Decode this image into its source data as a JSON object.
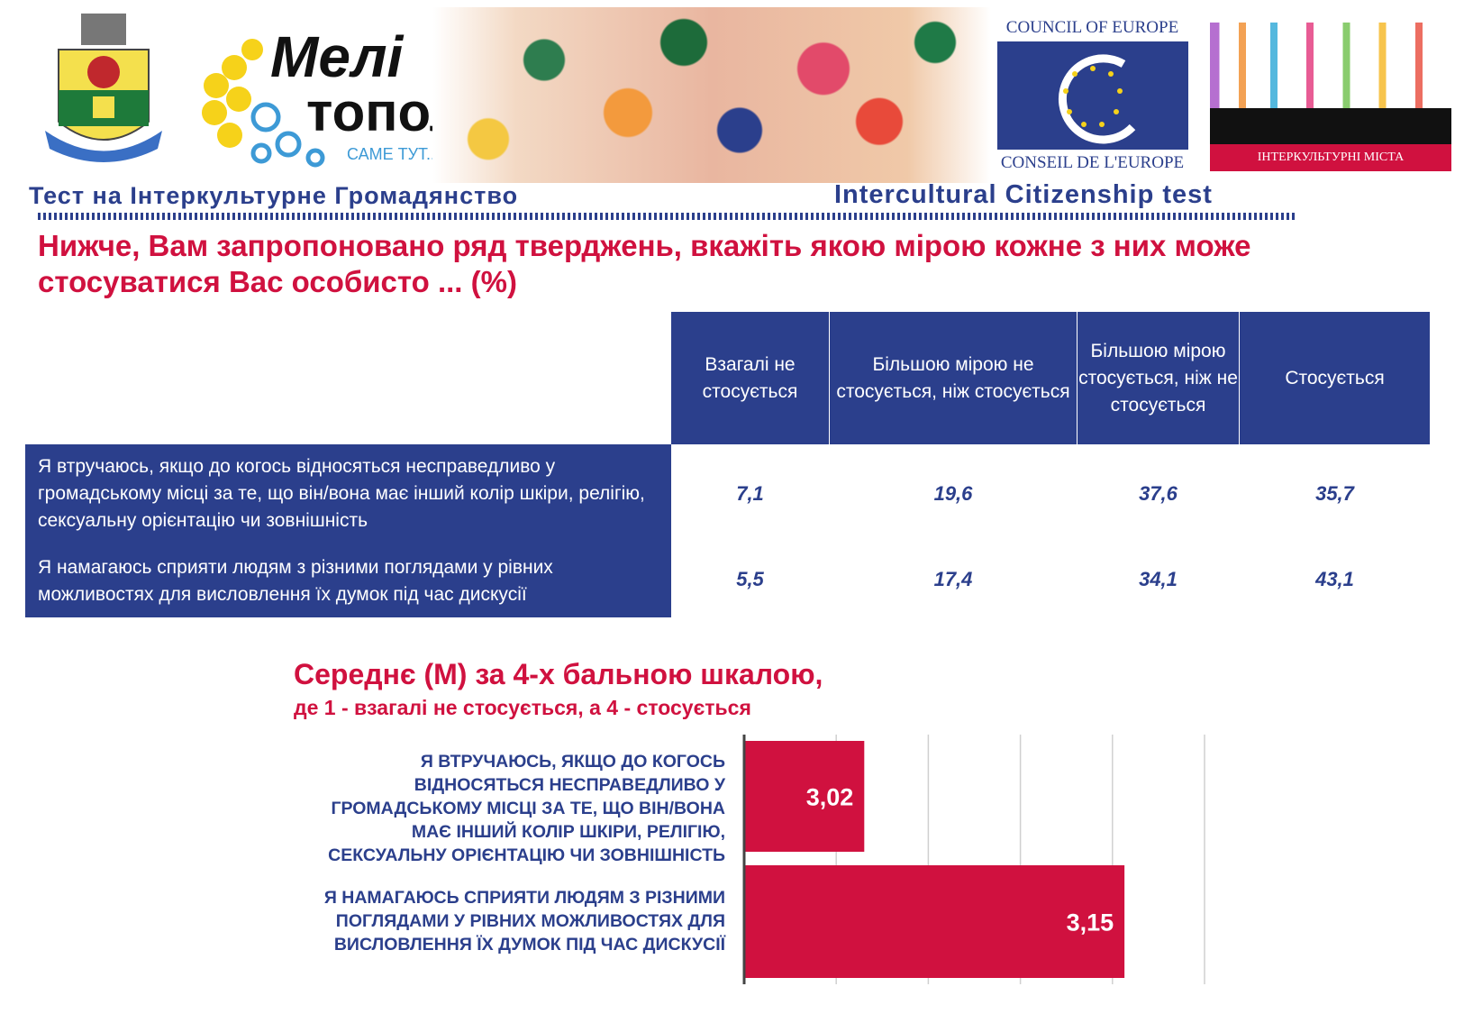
{
  "header": {
    "crest_text": "МЕЛІТОПОЛЬ",
    "melitopol_logo": {
      "line1": "Мелі",
      "line2": "тополь",
      "tagline": "САМЕ ТУТ..."
    },
    "coe_logo": {
      "top": "COUNCIL OF EUROPE",
      "bottom": "CONSEIL DE L'EUROPE"
    },
    "intercultural_cities_logo": "ІНТЕРКУЛЬТУРНІ МІСТА",
    "title_ua": "Тест на Інтеркультурне Громадянство",
    "title_en": "Intercultural Citizenship test"
  },
  "heading": "Нижче, Вам запропоновано ряд тверджень, вкажіть якою мірою кожне з них може стосуватися Вас особисто ... (%)",
  "table": {
    "columns": [
      "Взагалі не стосується",
      "Більшою мірою не стосується, ніж стосується",
      "Більшою мірою стосується, ніж не стосується",
      "Стосується"
    ],
    "rows": [
      {
        "label": "Я втручаюсь, якщо до когось відносяться несправедливо у громадському місці за те, що він/вона має інший колір шкіри, релігію, сексуальну орієнтацію чи зовнішність",
        "values": [
          "7,1",
          "19,6",
          "37,6",
          "35,7"
        ]
      },
      {
        "label": "Я намагаюсь сприяти людям з різними поглядами у рівних можливостях для висловлення їх думок під час дискусії",
        "values": [
          "5,5",
          "17,4",
          "34,1",
          "43,1"
        ]
      }
    ]
  },
  "chart_title": "Середнє (М) за 4-х бальною шкалою,",
  "chart_subtitle": "де 1 - взагалі не стосується, а 4 - стосується",
  "chart_data": {
    "type": "bar",
    "orientation": "horizontal",
    "categories": [
      "Я ВТРУЧАЮСЬ, ЯКЩО ДО КОГОСЬ ВІДНОСЯТЬСЯ НЕСПРАВЕДЛИВО У ГРОМАДСЬКОМУ МІСЦІ ЗА ТЕ, ЩО ВІН/ВОНА МАЄ ІНШИЙ КОЛІР ШКІРИ, РЕЛІГІЮ, СЕКСУАЛЬНУ ОРІЄНТАЦІЮ ЧИ ЗОВНІШНІСТЬ",
      "Я НАМАГАЮСЬ СПРИЯТИ ЛЮДЯМ З РІЗНИМИ ПОГЛЯДАМИ У РІВНИХ МОЖЛИВОСТЯХ ДЛЯ ВИСЛОВЛЕННЯ ЇХ ДУМОК ПІД ЧАС ДИСКУСІЇ"
    ],
    "values": [
      3.02,
      3.15
    ],
    "data_labels": [
      "3,02",
      "3,15"
    ],
    "xlim": [
      2.96,
      3.19
    ],
    "grid": true,
    "bar_color": "#d0113f"
  },
  "colors": {
    "navy": "#2b3f8c",
    "crimson": "#d0113f"
  }
}
